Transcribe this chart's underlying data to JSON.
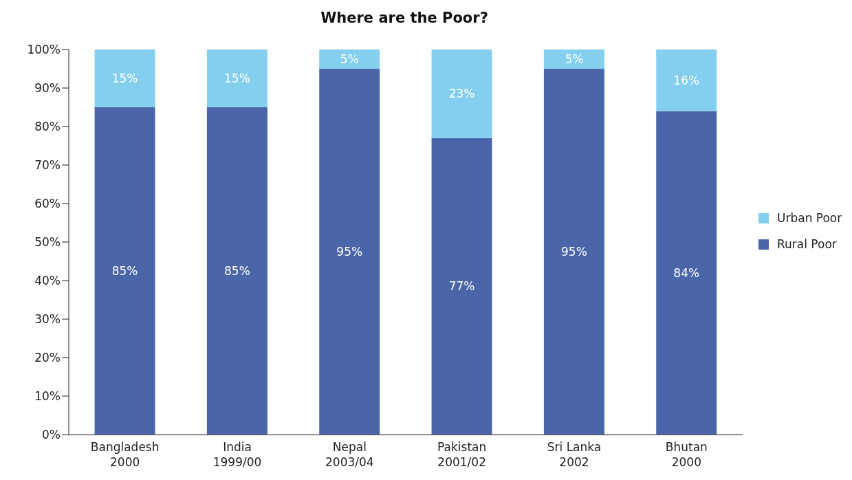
{
  "chart_data": {
    "type": "bar",
    "title": "Where are the Poor?",
    "stacked": true,
    "categories": [
      "Bangladesh\n2000",
      "India\n1999/00",
      "Nepal\n2003/04",
      "Pakistan\n2001/02",
      "Sri Lanka\n2002",
      "Bhutan\n2000"
    ],
    "series": [
      {
        "name": "Rural Poor",
        "color": "#4a65a8",
        "values": [
          85,
          85,
          95,
          77,
          95,
          84
        ],
        "value_labels": [
          "85%",
          "85%",
          "95%",
          "77%",
          "95%",
          "84%"
        ]
      },
      {
        "name": "Urban Poor",
        "color": "#84cfef",
        "values": [
          15,
          15,
          5,
          23,
          5,
          16
        ],
        "value_labels": [
          "15%",
          "15%",
          "5%",
          "23%",
          "5%",
          "16%"
        ]
      }
    ],
    "ylim": [
      0,
      100
    ],
    "yticks": [
      {
        "value": 0,
        "label": "0%"
      },
      {
        "value": 10,
        "label": "10%"
      },
      {
        "value": 20,
        "label": "20%"
      },
      {
        "value": 30,
        "label": "30%"
      },
      {
        "value": 40,
        "label": "40%"
      },
      {
        "value": 50,
        "label": "50%"
      },
      {
        "value": 60,
        "label": "60%"
      },
      {
        "value": 70,
        "label": "70%"
      },
      {
        "value": 80,
        "label": "80%"
      },
      {
        "value": 90,
        "label": "90%"
      },
      {
        "value": 100,
        "label": "100%"
      }
    ],
    "grid": false,
    "legend": "right"
  }
}
